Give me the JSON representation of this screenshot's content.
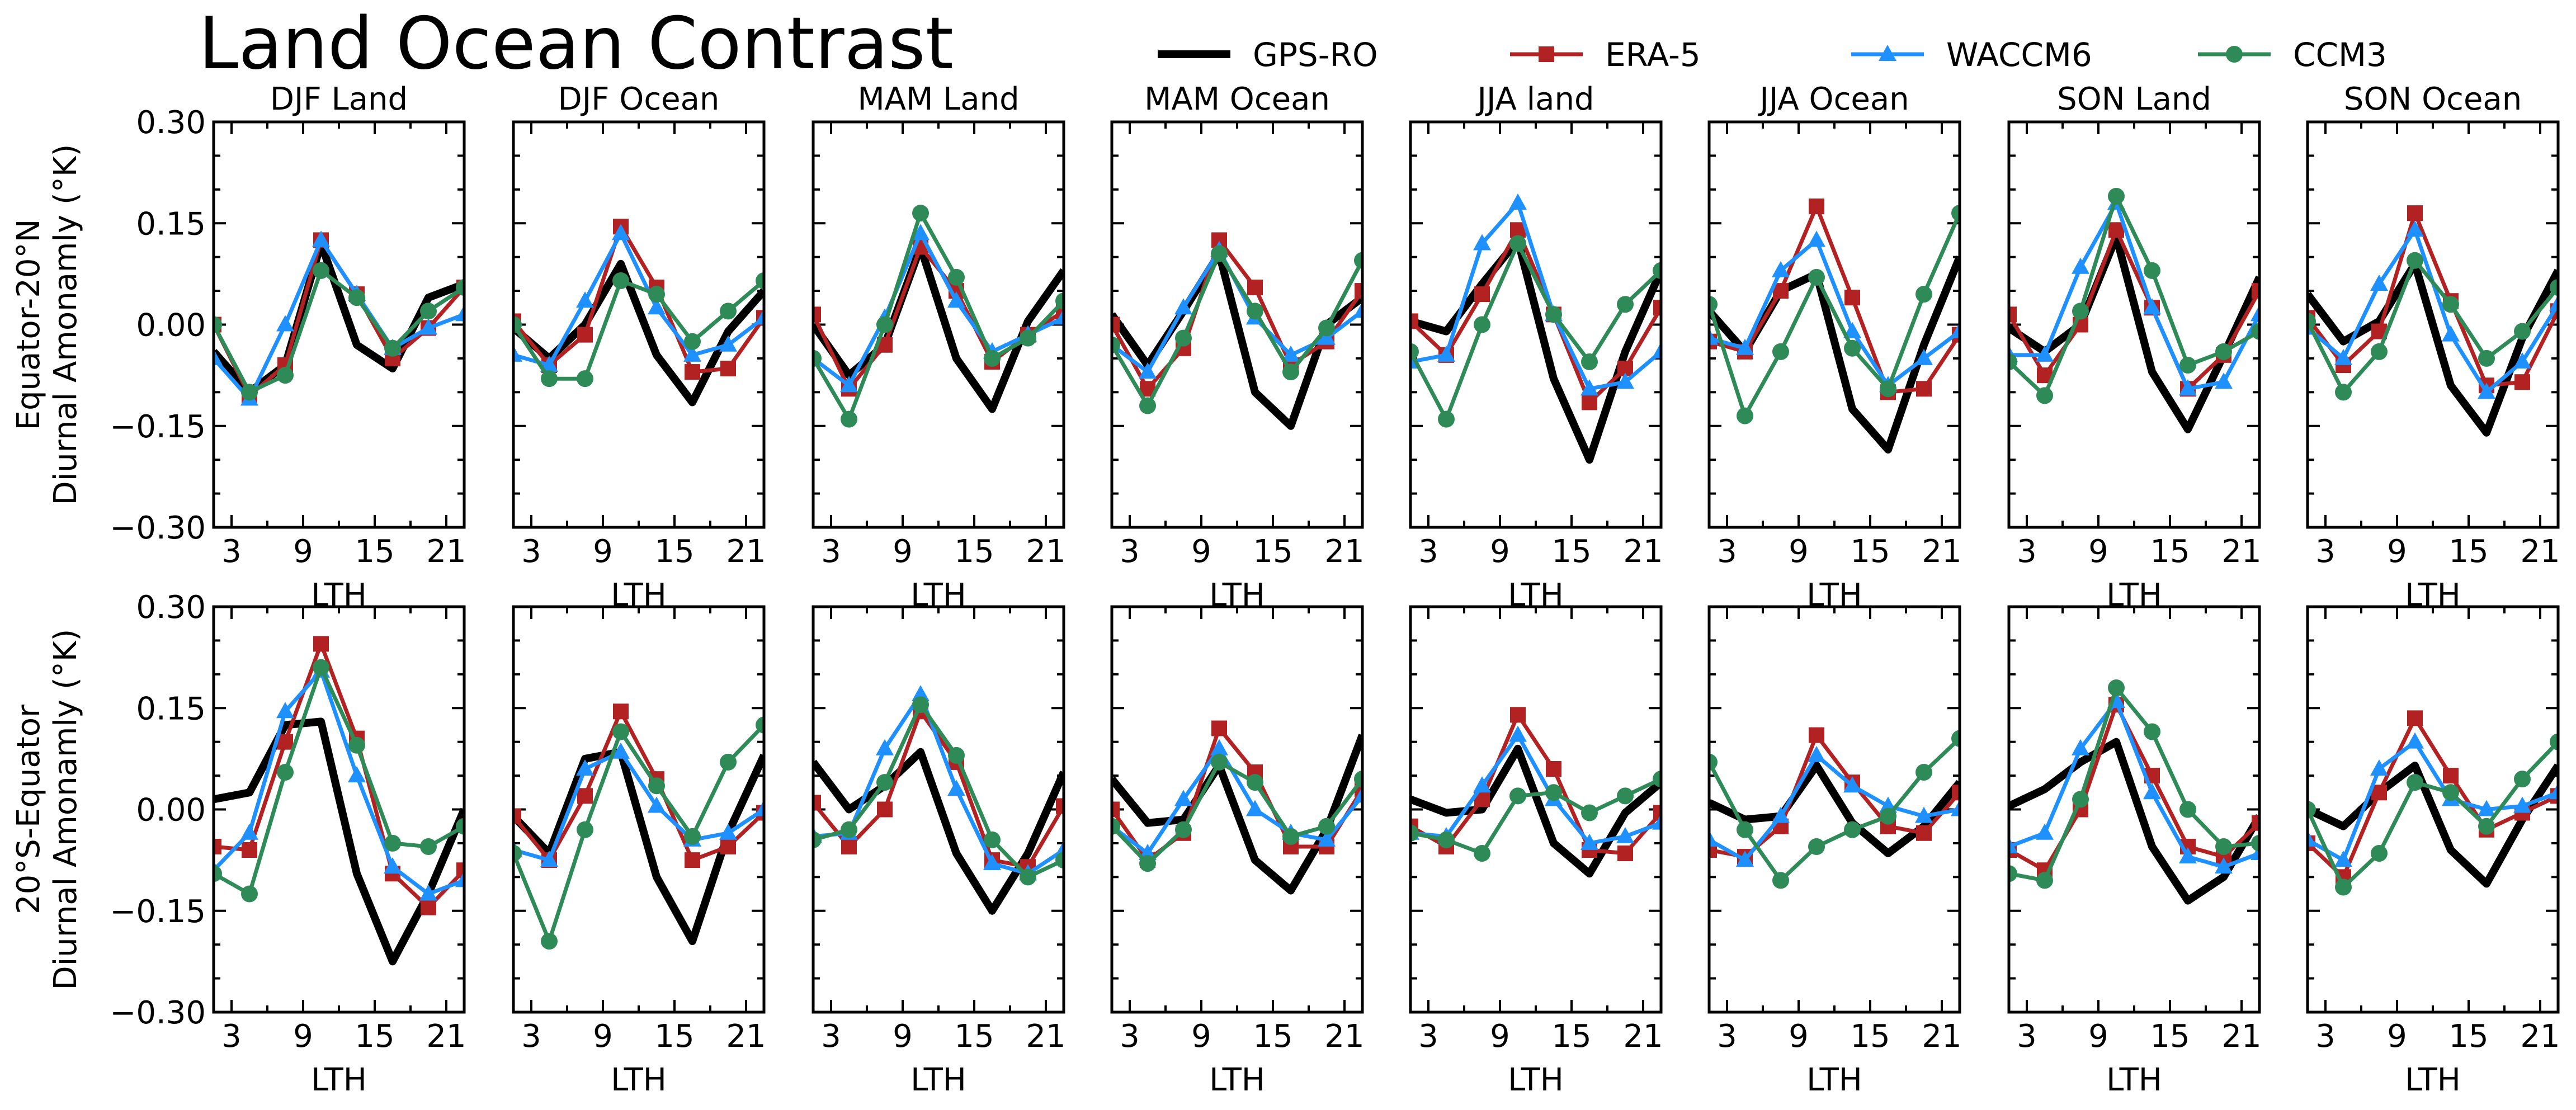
{
  "chart_data": {
    "type": "line",
    "title": "Land Ocean Contrast",
    "xlabel": "LTH",
    "xlim": [
      1.5,
      22.5
    ],
    "xticks": [
      3,
      9,
      15,
      21
    ],
    "x": [
      1.5,
      4.5,
      7.5,
      10.5,
      13.5,
      16.5,
      19.5,
      22.5
    ],
    "ylim": [
      -0.3,
      0.3
    ],
    "yticks": [
      "0.30",
      "0.15",
      "0.00",
      "−0.15",
      "−0.30"
    ],
    "ytick_values": [
      0.3,
      0.15,
      0.0,
      -0.15,
      -0.3
    ],
    "legend": {
      "placement": "top-right",
      "entries": [
        {
          "name": "GPS-RO",
          "color": "#000000",
          "marker": "none"
        },
        {
          "name": "ERA-5",
          "color": "#b22222",
          "marker": "square"
        },
        {
          "name": "WACCM6",
          "color": "#1e90ff",
          "marker": "triangle"
        },
        {
          "name": "CCM3",
          "color": "#2e8b57",
          "marker": "circle"
        }
      ]
    },
    "columns": [
      "DJF Land",
      "DJF Ocean",
      "MAM Land",
      "MAM Ocean",
      "JJA land",
      "JJA Ocean",
      "SON Land",
      "SON Ocean"
    ],
    "rows": [
      {
        "label_line1": "Equator-20°N",
        "label_line2": "Diurnal Amonamly (°K)",
        "panels": [
          {
            "series": [
              [
                -0.04,
                -0.1,
                -0.06,
                0.12,
                -0.03,
                -0.065,
                0.04,
                0.06
              ],
              [
                0.0,
                -0.105,
                -0.06,
                0.125,
                0.045,
                -0.05,
                -0.005,
                0.055
              ],
              [
                -0.05,
                -0.11,
                0.0,
                0.125,
                0.045,
                -0.035,
                -0.005,
                0.015
              ],
              [
                0.0,
                -0.1,
                -0.075,
                0.08,
                0.04,
                -0.035,
                0.02,
                0.055
              ]
            ]
          },
          {
            "series": [
              [
                -0.005,
                -0.05,
                0.0,
                0.09,
                -0.045,
                -0.115,
                -0.01,
                0.05
              ],
              [
                0.005,
                -0.06,
                -0.015,
                0.145,
                0.055,
                -0.07,
                -0.065,
                0.01
              ],
              [
                -0.045,
                -0.06,
                0.035,
                0.135,
                0.025,
                -0.045,
                -0.03,
                0.01
              ],
              [
                0.0,
                -0.08,
                -0.08,
                0.065,
                0.045,
                -0.025,
                0.02,
                0.065
              ]
            ]
          },
          {
            "series": [
              [
                0.0,
                -0.075,
                -0.03,
                0.115,
                -0.05,
                -0.125,
                0.005,
                0.08
              ],
              [
                0.015,
                -0.095,
                -0.03,
                0.115,
                0.05,
                -0.055,
                -0.015,
                0.02
              ],
              [
                -0.05,
                -0.09,
                0.01,
                0.135,
                0.035,
                -0.04,
                -0.015,
                0.01
              ],
              [
                -0.05,
                -0.14,
                0.0,
                0.165,
                0.07,
                -0.05,
                -0.02,
                0.035
              ]
            ]
          },
          {
            "series": [
              [
                0.015,
                -0.06,
                0.02,
                0.105,
                -0.1,
                -0.15,
                0.0,
                0.04
              ],
              [
                0.0,
                -0.095,
                -0.035,
                0.125,
                0.055,
                -0.06,
                -0.025,
                0.05
              ],
              [
                -0.03,
                -0.07,
                0.025,
                0.11,
                0.01,
                -0.045,
                -0.02,
                0.02
              ],
              [
                -0.03,
                -0.12,
                -0.02,
                0.105,
                0.02,
                -0.07,
                -0.005,
                0.095
              ]
            ]
          },
          {
            "series": [
              [
                0.005,
                -0.01,
                0.06,
                0.125,
                -0.08,
                -0.2,
                -0.04,
                0.08
              ],
              [
                0.005,
                -0.045,
                0.045,
                0.14,
                0.015,
                -0.115,
                -0.065,
                0.025
              ],
              [
                -0.055,
                -0.045,
                0.12,
                0.18,
                0.015,
                -0.095,
                -0.085,
                -0.04
              ],
              [
                -0.04,
                -0.14,
                0.0,
                0.12,
                0.015,
                -0.055,
                0.03,
                0.08
              ]
            ]
          },
          {
            "series": [
              [
                0.02,
                -0.04,
                0.05,
                0.075,
                -0.125,
                -0.185,
                -0.03,
                0.1
              ],
              [
                -0.025,
                -0.04,
                0.05,
                0.175,
                0.04,
                -0.1,
                -0.095,
                -0.015
              ],
              [
                -0.02,
                -0.035,
                0.08,
                0.125,
                -0.01,
                -0.09,
                -0.05,
                -0.01
              ],
              [
                0.03,
                -0.135,
                -0.04,
                0.07,
                -0.035,
                -0.095,
                0.045,
                0.165
              ]
            ]
          },
          {
            "series": [
              [
                -0.005,
                -0.04,
                0.0,
                0.13,
                -0.07,
                -0.155,
                -0.045,
                0.07
              ],
              [
                0.015,
                -0.075,
                0.0,
                0.14,
                0.025,
                -0.095,
                -0.045,
                0.05
              ],
              [
                -0.045,
                -0.045,
                0.085,
                0.18,
                0.025,
                -0.095,
                -0.085,
                0.015
              ],
              [
                -0.055,
                -0.105,
                0.02,
                0.19,
                0.08,
                -0.06,
                -0.04,
                -0.01
              ]
            ]
          },
          {
            "series": [
              [
                0.045,
                -0.025,
                0.005,
                0.09,
                -0.09,
                -0.16,
                -0.02,
                0.08
              ],
              [
                0.01,
                -0.06,
                -0.01,
                0.165,
                0.035,
                -0.09,
                -0.085,
                0.02
              ],
              [
                -0.005,
                -0.05,
                0.06,
                0.14,
                -0.015,
                -0.1,
                -0.055,
                0.03
              ],
              [
                0.005,
                -0.1,
                -0.04,
                0.095,
                0.03,
                -0.05,
                -0.01,
                0.055
              ]
            ]
          }
        ]
      },
      {
        "label_line1": "20°S-Equator",
        "label_line2": "Diurnal Amonamly (°K)",
        "panels": [
          {
            "series": [
              [
                0.015,
                0.025,
                0.125,
                0.13,
                -0.095,
                -0.225,
                -0.125,
                0.0
              ],
              [
                -0.055,
                -0.06,
                0.1,
                0.245,
                0.105,
                -0.095,
                -0.145,
                -0.09
              ],
              [
                -0.09,
                -0.035,
                0.145,
                0.205,
                0.05,
                -0.085,
                -0.125,
                -0.105
              ],
              [
                -0.095,
                -0.125,
                0.055,
                0.21,
                0.095,
                -0.05,
                -0.055,
                -0.025
              ]
            ]
          },
          {
            "series": [
              [
                -0.01,
                -0.065,
                0.075,
                0.085,
                -0.1,
                -0.195,
                -0.035,
                0.08
              ],
              [
                -0.01,
                -0.075,
                0.02,
                0.145,
                0.045,
                -0.075,
                -0.055,
                -0.005
              ],
              [
                -0.06,
                -0.075,
                0.06,
                0.085,
                0.005,
                -0.045,
                -0.035,
                0.0
              ],
              [
                -0.065,
                -0.195,
                -0.03,
                0.115,
                0.035,
                -0.04,
                0.07,
                0.125
              ]
            ]
          },
          {
            "series": [
              [
                0.07,
                0.0,
                0.035,
                0.085,
                -0.065,
                -0.15,
                -0.065,
                0.055
              ],
              [
                0.01,
                -0.055,
                0.0,
                0.145,
                0.07,
                -0.075,
                -0.085,
                0.005
              ],
              [
                -0.04,
                -0.035,
                0.09,
                0.17,
                0.03,
                -0.08,
                -0.095,
                -0.06
              ],
              [
                -0.045,
                -0.03,
                0.04,
                0.155,
                0.08,
                -0.045,
                -0.1,
                -0.075
              ]
            ]
          },
          {
            "series": [
              [
                0.045,
                -0.02,
                -0.015,
                0.065,
                -0.075,
                -0.12,
                -0.03,
                0.11
              ],
              [
                0.0,
                -0.075,
                -0.035,
                0.12,
                0.055,
                -0.055,
                -0.055,
                0.03
              ],
              [
                -0.025,
                -0.065,
                0.015,
                0.09,
                0.0,
                -0.035,
                -0.045,
                0.02
              ],
              [
                -0.025,
                -0.08,
                -0.03,
                0.07,
                0.04,
                -0.04,
                -0.025,
                0.045
              ]
            ]
          },
          {
            "series": [
              [
                0.015,
                -0.005,
                0.0,
                0.09,
                -0.05,
                -0.095,
                -0.005,
                0.04
              ],
              [
                -0.025,
                -0.055,
                0.015,
                0.14,
                0.06,
                -0.06,
                -0.065,
                -0.005
              ],
              [
                -0.035,
                -0.04,
                0.035,
                0.11,
                0.015,
                -0.05,
                -0.04,
                -0.02
              ],
              [
                -0.035,
                -0.045,
                -0.065,
                0.02,
                0.025,
                -0.005,
                0.02,
                0.045
              ]
            ]
          },
          {
            "series": [
              [
                0.01,
                -0.015,
                -0.01,
                0.065,
                -0.02,
                -0.065,
                -0.025,
                0.04
              ],
              [
                -0.06,
                -0.07,
                -0.025,
                0.11,
                0.04,
                -0.025,
                -0.035,
                0.025
              ],
              [
                -0.045,
                -0.075,
                -0.01,
                0.08,
                0.035,
                0.005,
                -0.01,
                0.0
              ],
              [
                0.07,
                -0.03,
                -0.105,
                -0.055,
                -0.03,
                -0.01,
                0.055,
                0.105
              ]
            ]
          },
          {
            "series": [
              [
                0.005,
                0.03,
                0.07,
                0.1,
                -0.055,
                -0.135,
                -0.1,
                -0.01
              ],
              [
                -0.06,
                -0.09,
                0.0,
                0.155,
                0.05,
                -0.055,
                -0.07,
                -0.02
              ],
              [
                -0.055,
                -0.035,
                0.09,
                0.16,
                0.025,
                -0.07,
                -0.085,
                -0.065
              ],
              [
                -0.095,
                -0.105,
                0.015,
                0.18,
                0.115,
                0.0,
                -0.055,
                -0.05
              ]
            ]
          },
          {
            "series": [
              [
                0.0,
                -0.025,
                0.025,
                0.065,
                -0.06,
                -0.11,
                -0.015,
                0.065
              ],
              [
                -0.05,
                -0.1,
                0.025,
                0.135,
                0.05,
                -0.03,
                -0.005,
                0.02
              ],
              [
                -0.045,
                -0.075,
                0.06,
                0.1,
                0.015,
                0.0,
                0.005,
                0.025
              ],
              [
                0.0,
                -0.115,
                -0.065,
                0.04,
                0.025,
                -0.025,
                0.045,
                0.1
              ]
            ]
          }
        ]
      }
    ]
  }
}
